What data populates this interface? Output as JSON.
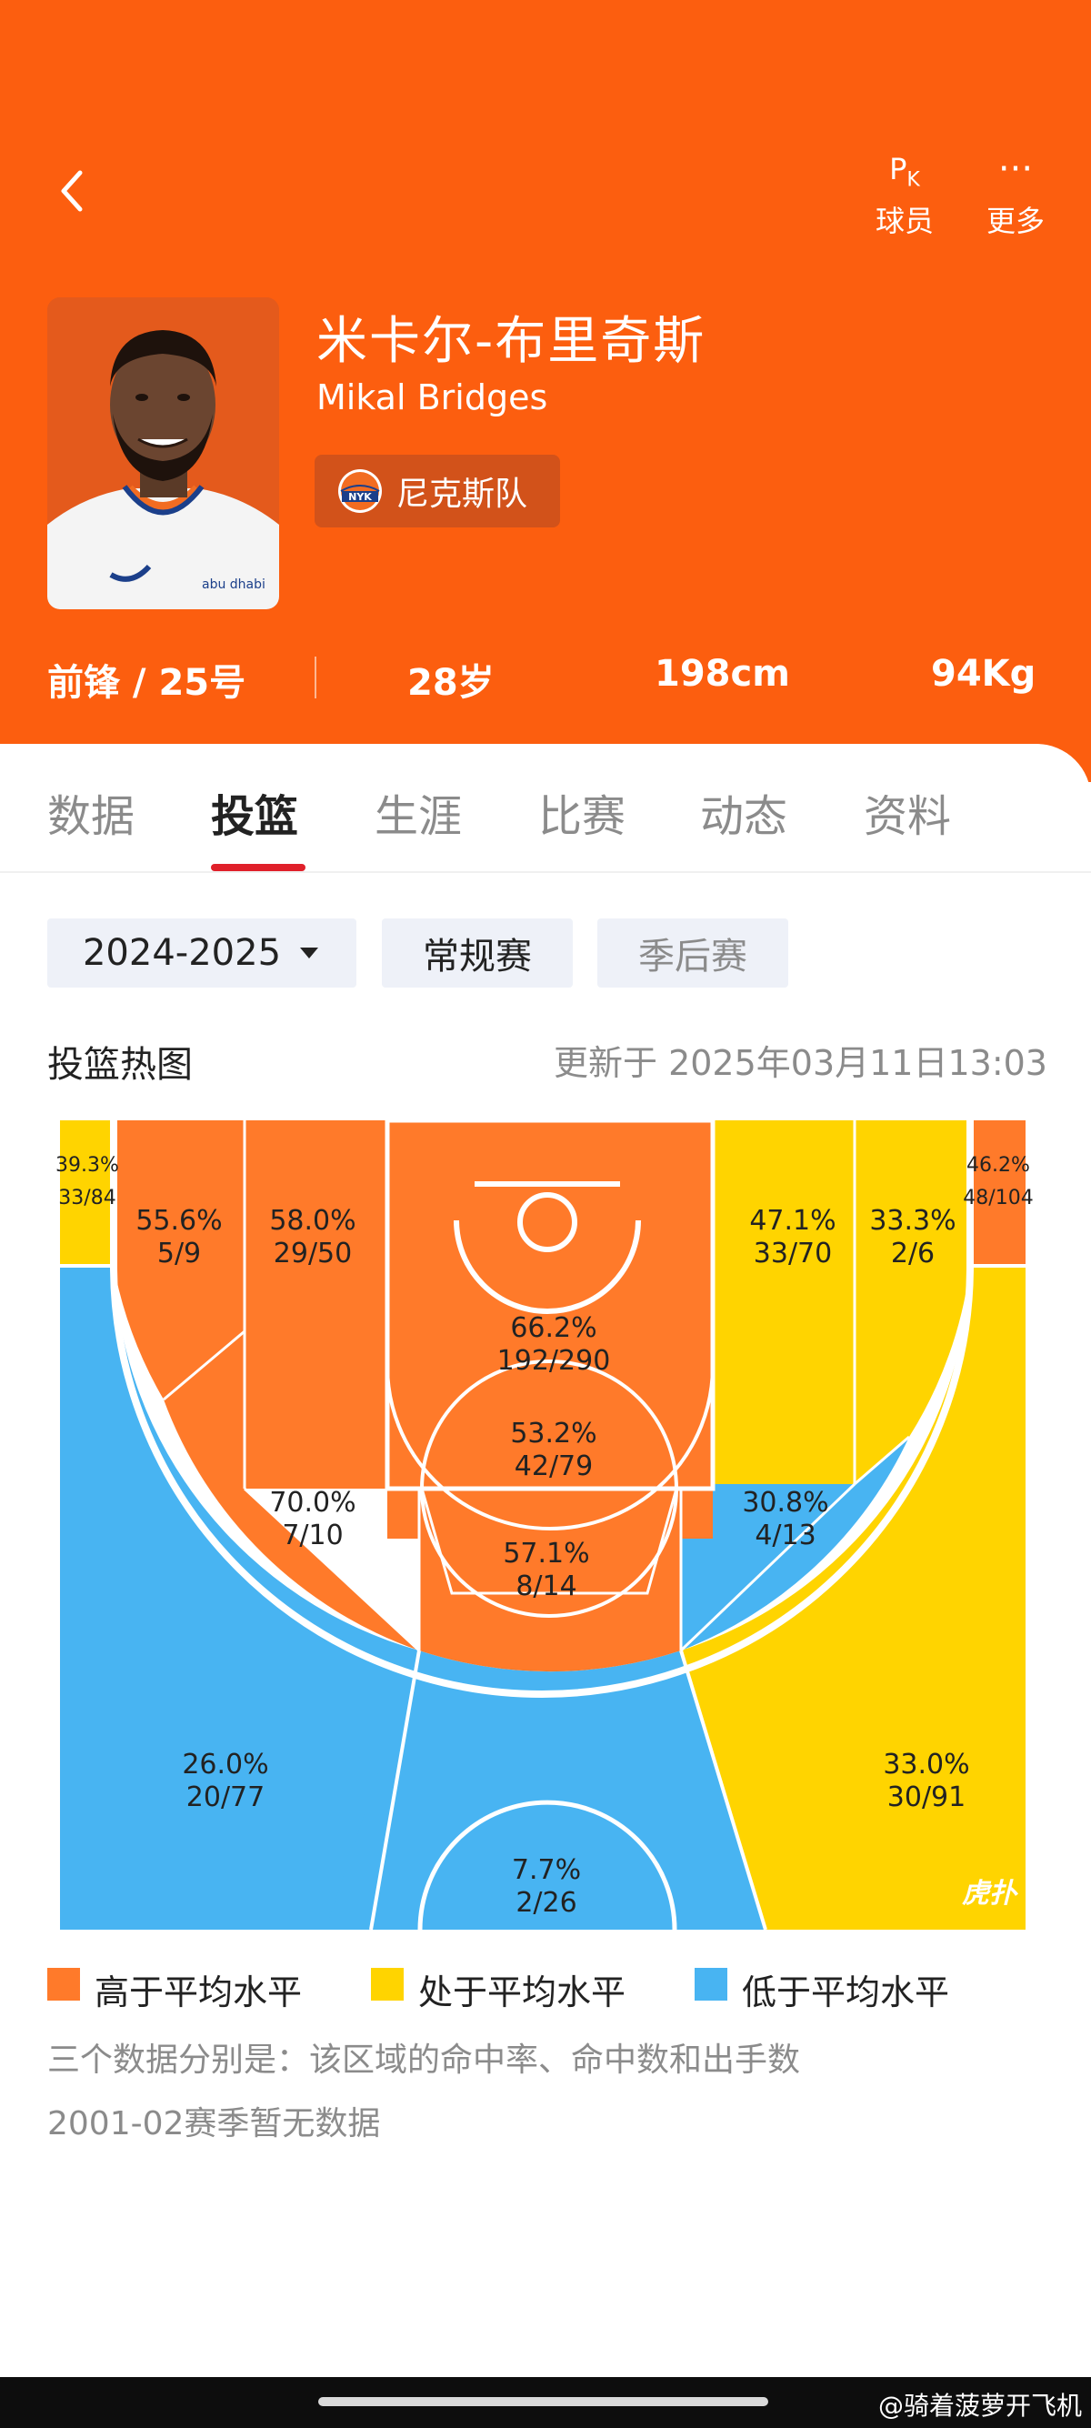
{
  "header": {
    "pk_top": "P",
    "pk_sub": "K",
    "pk_label": "球员",
    "more_icon": "···",
    "more_label": "更多",
    "player_cn": "米卡尔-布里奇斯",
    "player_en": "Mikal Bridges",
    "team_logo_text": "NYK",
    "team": "尼克斯队",
    "jersey_logo": "abu dhabi",
    "position_number": "前锋 / 25号",
    "age": "28岁",
    "height": "198cm",
    "weight": "94Kg",
    "color": "#fc5e0f"
  },
  "tabs": [
    "数据",
    "投篮",
    "生涯",
    "比赛",
    "动态",
    "资料"
  ],
  "active_tab": "投篮",
  "filters": {
    "season": "2024-2025",
    "regular": "常规赛",
    "playoffs": "季后赛"
  },
  "section": {
    "title": "投篮热图",
    "updated": "更新于 2025年03月11日13:03"
  },
  "colors": {
    "above": "#ff7a2a",
    "average": "#ffd400",
    "below": "#48b4f2"
  },
  "zones": [
    {
      "id": "left-corner-3",
      "pct": "39.3%",
      "made": "33/84",
      "level": "average"
    },
    {
      "id": "left-mid-baseline",
      "pct": "55.6%",
      "made": "5/9",
      "level": "above"
    },
    {
      "id": "left-mid-inner",
      "pct": "58.0%",
      "made": "29/50",
      "level": "above"
    },
    {
      "id": "paint",
      "pct": "66.2%",
      "made": "192/290",
      "level": "above"
    },
    {
      "id": "right-mid-inner",
      "pct": "47.1%",
      "made": "33/70",
      "level": "average"
    },
    {
      "id": "right-mid-baseline",
      "pct": "33.3%",
      "made": "2/6",
      "level": "average"
    },
    {
      "id": "right-corner-3",
      "pct": "46.2%",
      "made": "48/104",
      "level": "above"
    },
    {
      "id": "free-throw-area",
      "pct": "53.2%",
      "made": "42/79",
      "level": "above"
    },
    {
      "id": "left-elbow-mid",
      "pct": "70.0%",
      "made": "7/10",
      "level": "above"
    },
    {
      "id": "top-key-mid",
      "pct": "57.1%",
      "made": "8/14",
      "level": "above"
    },
    {
      "id": "right-elbow-mid",
      "pct": "30.8%",
      "made": "4/13",
      "level": "below"
    },
    {
      "id": "left-wing-3",
      "pct": "26.0%",
      "made": "20/77",
      "level": "below"
    },
    {
      "id": "top-3",
      "pct": "7.7%",
      "made": "2/26",
      "level": "below"
    },
    {
      "id": "right-wing-3",
      "pct": "33.0%",
      "made": "30/91",
      "level": "average"
    }
  ],
  "court_watermark": "虎扑",
  "legend": {
    "above": "高于平均水平",
    "average": "处于平均水平",
    "below": "低于平均水平"
  },
  "notes": {
    "line1": "三个数据分别是：该区域的命中率、命中数和出手数",
    "line2": "2001-02赛季暂无数据"
  },
  "watermark": "@骑着菠萝开飞机"
}
